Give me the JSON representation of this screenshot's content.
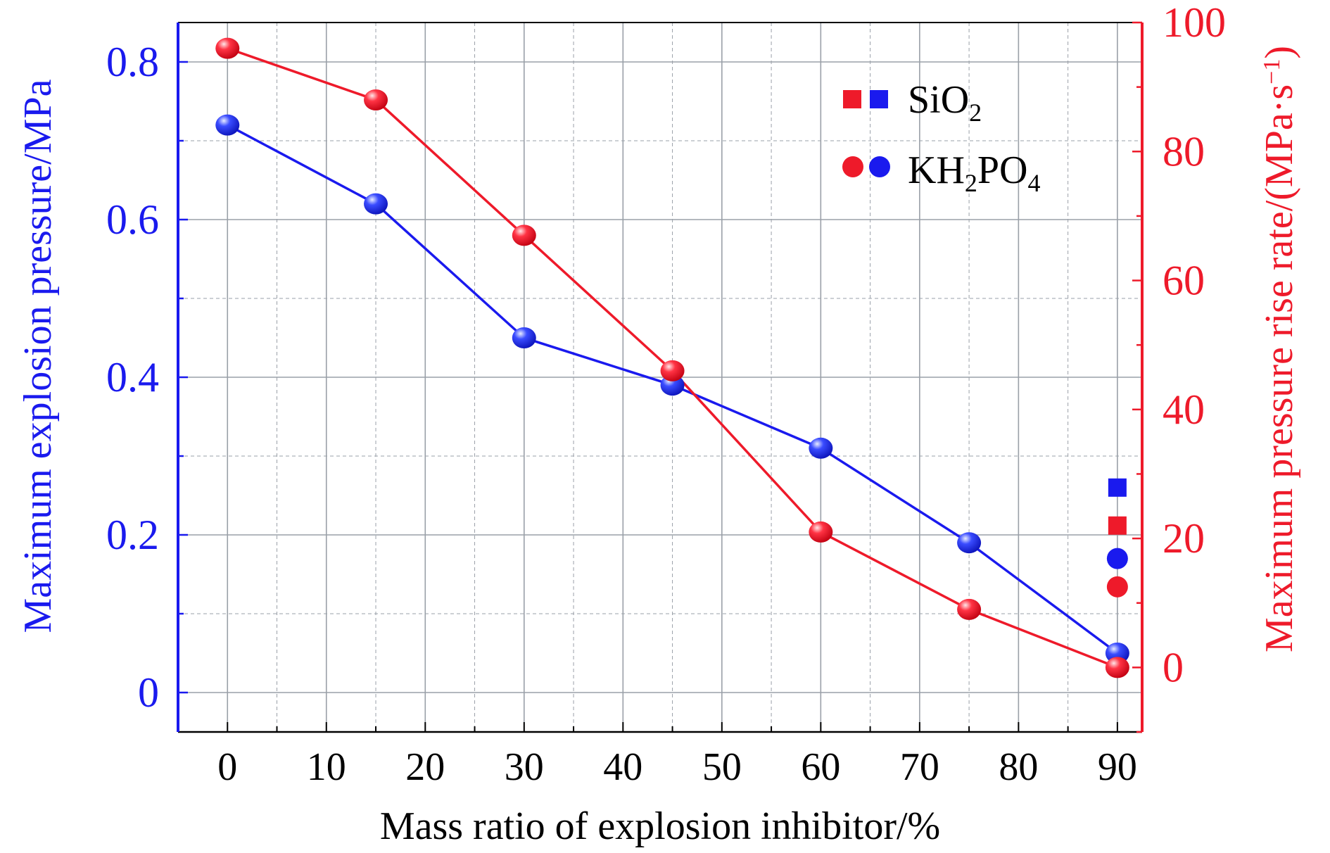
{
  "chart_data": {
    "type": "line",
    "xlabel": "Mass ratio of explosion inhibitor/%",
    "ylabel_left": "Maximum explosion pressure/MPa",
    "ylabel_right": "Maximum pressure rise rate/(MPa·s",
    "ylabel_right_sup": "−1",
    "ylabel_right_close": ")",
    "xlim": [
      -5,
      92.5
    ],
    "ylim_left": [
      -0.05,
      0.85
    ],
    "ylim_right": [
      -10,
      100
    ],
    "x_ticks": [
      0,
      10,
      20,
      30,
      40,
      50,
      60,
      70,
      80,
      90
    ],
    "y_left_ticks": [
      "0",
      "0.2",
      "0.4",
      "0.6",
      "0.8"
    ],
    "y_left_tick_values": [
      0,
      0.2,
      0.4,
      0.6,
      0.8
    ],
    "y_right_ticks": [
      "0",
      "20",
      "40",
      "60",
      "80",
      "100"
    ],
    "y_right_tick_values": [
      0,
      20,
      40,
      60,
      80,
      100
    ],
    "grid": true,
    "legend_position": "top-right",
    "legend": [
      {
        "label": "SiO",
        "sub": "2",
        "tail": "",
        "marker": "square"
      },
      {
        "label": "KH",
        "sub": "2",
        "tail": "PO",
        "sub2": "4",
        "marker": "circle"
      }
    ],
    "colors": {
      "left": "#1a1aee",
      "right": "#ee1a2a",
      "grid": "#9aa0a8"
    },
    "series": [
      {
        "group": "KH2PO4",
        "axis": "left",
        "marker": "circle",
        "connected": true,
        "x": [
          0,
          15,
          30,
          45,
          60,
          75,
          90
        ],
        "y": [
          0.72,
          0.62,
          0.45,
          0.39,
          0.31,
          0.19,
          0.05
        ]
      },
      {
        "group": "KH2PO4",
        "axis": "right",
        "marker": "circle",
        "connected": true,
        "x": [
          0,
          15,
          30,
          45,
          60,
          75,
          90
        ],
        "y": [
          96,
          88,
          67,
          46,
          21,
          9,
          0
        ]
      },
      {
        "group": "SiO2",
        "axis": "left",
        "marker": "square",
        "connected": false,
        "x": [
          90
        ],
        "y": [
          0.26
        ]
      },
      {
        "group": "SiO2",
        "axis": "right",
        "marker": "square",
        "connected": false,
        "x": [
          90
        ],
        "y": [
          22
        ]
      },
      {
        "group": "KH2PO4",
        "axis": "left",
        "marker": "circle",
        "connected": false,
        "x": [
          90
        ],
        "y": [
          0.17
        ]
      },
      {
        "group": "KH2PO4",
        "axis": "right",
        "marker": "circle",
        "connected": false,
        "x": [
          90
        ],
        "y": [
          12.5
        ]
      }
    ]
  }
}
